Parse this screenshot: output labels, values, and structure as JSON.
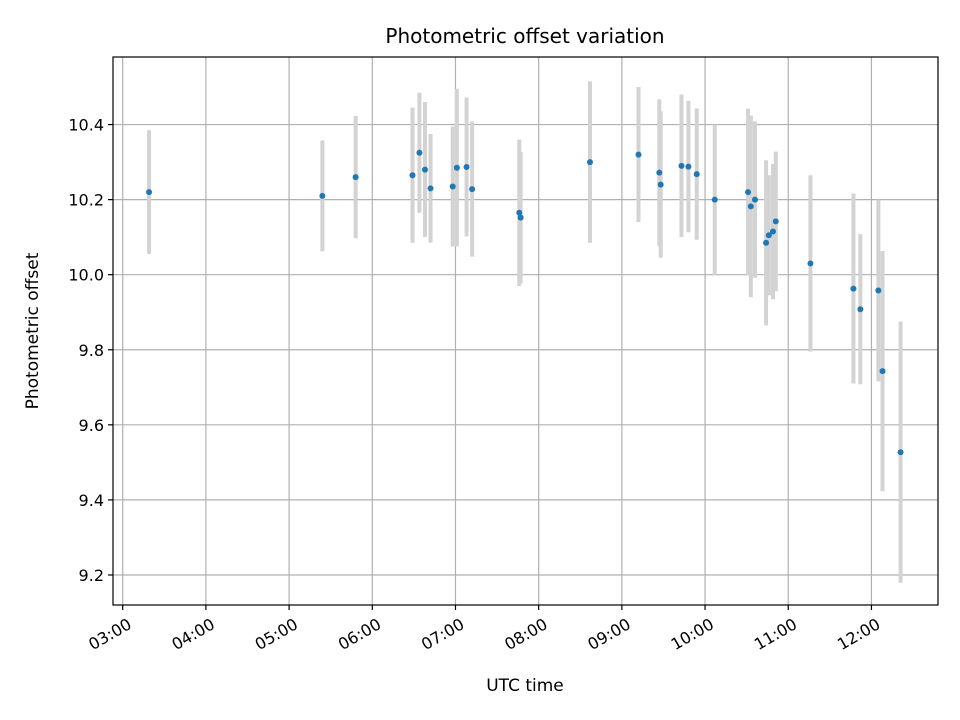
{
  "chart_data": {
    "type": "scatter",
    "title": "Photometric offset variation",
    "xlabel": "UTC time",
    "ylabel": "Photometric offset",
    "x_unit": "UTC time (HH:MM)",
    "xlim": [
      "02:53",
      "12:48"
    ],
    "ylim": [
      9.12,
      10.58
    ],
    "x_ticks": [
      "03:00",
      "04:00",
      "05:00",
      "06:00",
      "07:00",
      "08:00",
      "09:00",
      "10:00",
      "11:00",
      "12:00"
    ],
    "y_ticks": [
      9.2,
      9.4,
      9.6,
      9.8,
      10.0,
      10.2,
      10.4
    ],
    "y_tick_labels": [
      "9.2",
      "9.4",
      "9.6",
      "9.8",
      "10.0",
      "10.2",
      "10.4"
    ],
    "grid": true,
    "colors": {
      "points": "#1f77b4",
      "error_bars": "#d3d3d3",
      "grid": "#b0b0b0"
    },
    "series": [
      {
        "points": [
          {
            "x": "03:19",
            "y": 10.22,
            "err": 0.165
          },
          {
            "x": "05:24",
            "y": 10.21,
            "err": 0.148
          },
          {
            "x": "05:48",
            "y": 10.26,
            "err": 0.163
          },
          {
            "x": "06:29",
            "y": 10.265,
            "err": 0.18
          },
          {
            "x": "06:34",
            "y": 10.325,
            "err": 0.16
          },
          {
            "x": "06:38",
            "y": 10.28,
            "err": 0.18
          },
          {
            "x": "06:42",
            "y": 10.23,
            "err": 0.145
          },
          {
            "x": "06:58",
            "y": 10.235,
            "err": 0.16
          },
          {
            "x": "07:01",
            "y": 10.285,
            "err": 0.21
          },
          {
            "x": "07:08",
            "y": 10.287,
            "err": 0.185
          },
          {
            "x": "07:12",
            "y": 10.228,
            "err": 0.18
          },
          {
            "x": "07:46",
            "y": 10.165,
            "err": 0.195
          },
          {
            "x": "07:47",
            "y": 10.152,
            "err": 0.175
          },
          {
            "x": "08:37",
            "y": 10.3,
            "err": 0.215
          },
          {
            "x": "09:12",
            "y": 10.32,
            "err": 0.18
          },
          {
            "x": "09:27",
            "y": 10.272,
            "err": 0.195
          },
          {
            "x": "09:28",
            "y": 10.24,
            "err": 0.195
          },
          {
            "x": "09:43",
            "y": 10.29,
            "err": 0.19
          },
          {
            "x": "09:48",
            "y": 10.288,
            "err": 0.175
          },
          {
            "x": "09:54",
            "y": 10.268,
            "err": 0.175
          },
          {
            "x": "10:07",
            "y": 10.2,
            "err": 0.2
          },
          {
            "x": "10:31",
            "y": 10.22,
            "err": 0.222
          },
          {
            "x": "10:33",
            "y": 10.182,
            "err": 0.242
          },
          {
            "x": "10:36",
            "y": 10.2,
            "err": 0.208
          },
          {
            "x": "10:44",
            "y": 10.085,
            "err": 0.22
          },
          {
            "x": "10:46",
            "y": 10.105,
            "err": 0.16
          },
          {
            "x": "10:49",
            "y": 10.115,
            "err": 0.18
          },
          {
            "x": "10:51",
            "y": 10.142,
            "err": 0.186
          },
          {
            "x": "11:16",
            "y": 10.03,
            "err": 0.235
          },
          {
            "x": "11:47",
            "y": 9.963,
            "err": 0.253
          },
          {
            "x": "11:52",
            "y": 9.908,
            "err": 0.2
          },
          {
            "x": "12:05",
            "y": 9.958,
            "err": 0.242
          },
          {
            "x": "12:08",
            "y": 9.743,
            "err": 0.32
          },
          {
            "x": "12:21",
            "y": 9.527,
            "err": 0.348
          }
        ]
      }
    ]
  }
}
